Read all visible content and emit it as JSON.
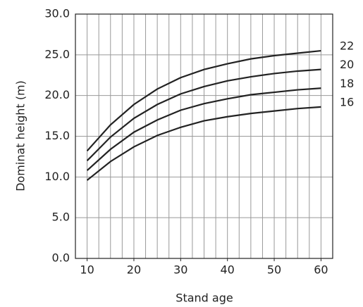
{
  "chart_data": {
    "type": "line",
    "x_label": "Stand age",
    "y_label": "Dominat height (m)",
    "x": [
      10,
      15,
      20,
      25,
      30,
      35,
      40,
      45,
      50,
      55,
      60
    ],
    "series": [
      {
        "name": "22",
        "color": "#222222",
        "values": [
          13.2,
          16.4,
          18.9,
          20.8,
          22.2,
          23.2,
          23.9,
          24.5,
          24.9,
          25.2,
          25.5
        ]
      },
      {
        "name": "20",
        "color": "#222222",
        "values": [
          12.0,
          14.9,
          17.2,
          18.9,
          20.2,
          21.1,
          21.8,
          22.3,
          22.7,
          23.0,
          23.2
        ]
      },
      {
        "name": "18",
        "color": "#222222",
        "values": [
          10.8,
          13.4,
          15.5,
          17.0,
          18.2,
          19.0,
          19.6,
          20.1,
          20.4,
          20.7,
          20.9
        ]
      },
      {
        "name": "16",
        "color": "#222222",
        "values": [
          9.6,
          11.9,
          13.7,
          15.1,
          16.1,
          16.9,
          17.4,
          17.8,
          18.1,
          18.4,
          18.6
        ]
      }
    ],
    "xlim": [
      7.5,
      62.5
    ],
    "ylim": [
      0,
      30
    ],
    "xticks": [
      10,
      20,
      30,
      40,
      50,
      60
    ],
    "x_grid": [
      10,
      12.5,
      15,
      17.5,
      20,
      22.5,
      25,
      27.5,
      30,
      32.5,
      35,
      37.5,
      40,
      42.5,
      45,
      47.5,
      50,
      52.5,
      55,
      57.5,
      60
    ],
    "yticks": [
      {
        "value": 0,
        "label": "0.0"
      },
      {
        "value": 5,
        "label": "5.0"
      },
      {
        "value": 10,
        "label": "10.0"
      },
      {
        "value": 15,
        "label": "15.0"
      },
      {
        "value": 20,
        "label": "20.0"
      },
      {
        "value": 25,
        "label": "25.0"
      },
      {
        "value": 30,
        "label": "30.0"
      }
    ],
    "grid": true
  }
}
